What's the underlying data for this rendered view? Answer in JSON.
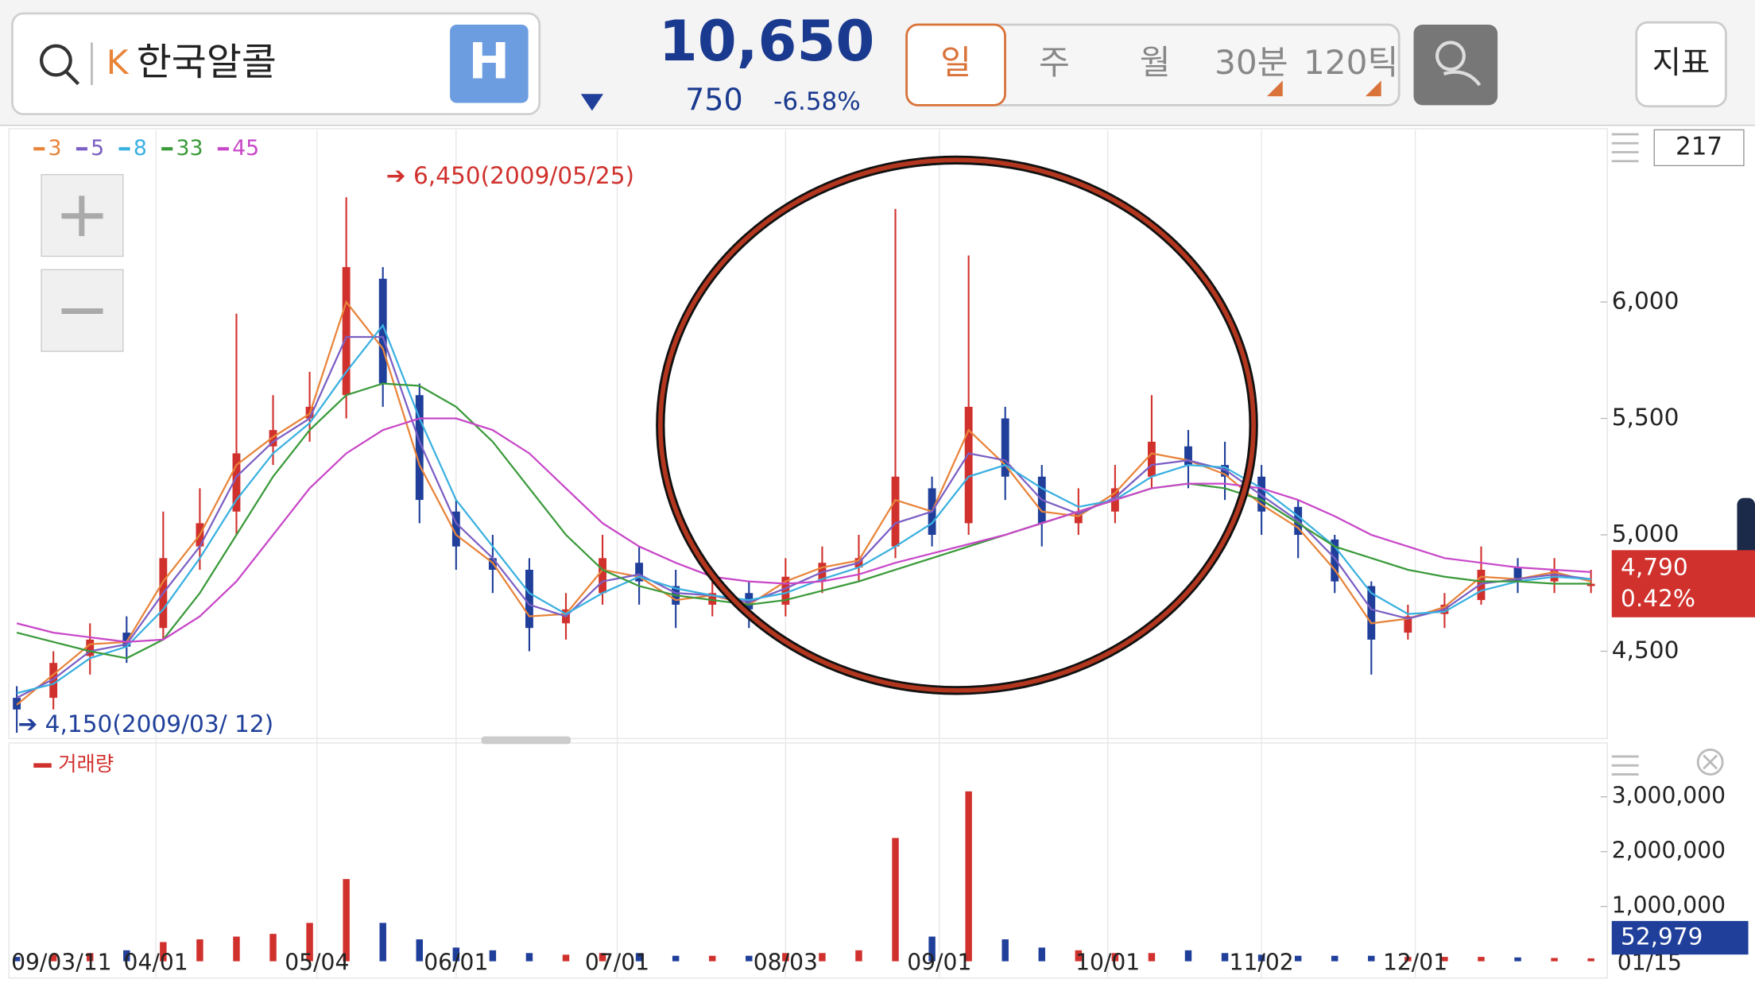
{
  "header": {
    "search_prefix": "K",
    "stock_name": "한국알콜",
    "market_badge": "H",
    "price": "10,650",
    "change": "750",
    "change_pct": "-6.58%"
  },
  "tabs": [
    "일",
    "주",
    "월",
    "30분",
    "120틱"
  ],
  "indicator_button": "지표",
  "count_label": "217",
  "chart_data": [
    {
      "type": "candlestick",
      "x": [
        0,
        5,
        10,
        15,
        20,
        25,
        30,
        35,
        40,
        45,
        50,
        55,
        60,
        65,
        70,
        75,
        80,
        85,
        90,
        95,
        100,
        105,
        110,
        115,
        120,
        125,
        130,
        135,
        140,
        145,
        150,
        155,
        160,
        165,
        170,
        175,
        180,
        185,
        190,
        195,
        200,
        205,
        210,
        215
      ],
      "open": [
        4300,
        4300,
        4480,
        4580,
        4600,
        4950,
        5100,
        5380,
        5500,
        5600,
        6100,
        5600,
        5100,
        4900,
        4850,
        4620,
        4750,
        4880,
        4780,
        4700,
        4750,
        4700,
        4800,
        4860,
        4950,
        5200,
        5050,
        5500,
        5250,
        5050,
        5100,
        5250,
        5380,
        5300,
        5250,
        5120,
        4980,
        4780,
        4580,
        4660,
        4720,
        4860,
        4800,
        4780
      ],
      "high": [
        4350,
        4500,
        4620,
        4650,
        5100,
        5200,
        5950,
        5600,
        5700,
        6450,
        6150,
        5650,
        5150,
        5000,
        4900,
        4750,
        5000,
        4950,
        4850,
        4800,
        4800,
        4900,
        4950,
        5000,
        6400,
        5250,
        6200,
        5550,
        5300,
        5200,
        5300,
        5600,
        5450,
        5400,
        5300,
        5150,
        5000,
        4800,
        4700,
        4750,
        4950,
        4900,
        4900,
        4850
      ],
      "low": [
        4150,
        4250,
        4400,
        4450,
        4550,
        4850,
        5000,
        5300,
        5400,
        5500,
        5550,
        5050,
        4850,
        4750,
        4500,
        4550,
        4700,
        4700,
        4600,
        4650,
        4600,
        4650,
        4750,
        4800,
        4900,
        4950,
        5000,
        5150,
        4950,
        5000,
        5050,
        5200,
        5200,
        5150,
        5000,
        4900,
        4750,
        4400,
        4550,
        4600,
        4700,
        4750,
        4750,
        4750
      ],
      "close": [
        4250,
        4450,
        4550,
        4520,
        4900,
        5050,
        5350,
        5450,
        5550,
        6150,
        5650,
        5150,
        4950,
        4850,
        4600,
        4680,
        4900,
        4800,
        4700,
        4750,
        4680,
        4820,
        4880,
        4900,
        5250,
        5000,
        5550,
        5250,
        5050,
        5100,
        5200,
        5400,
        5300,
        5250,
        5100,
        5000,
        4800,
        4550,
        4650,
        4700,
        4850,
        4800,
        4850,
        4790
      ],
      "up_color": "#d0312d",
      "down_color": "#1f3f9a",
      "series": [
        {
          "name": "3",
          "color": "#e8843a",
          "values": [
            4270,
            4400,
            4530,
            4540,
            4800,
            5000,
            5300,
            5420,
            5520,
            6000,
            5800,
            5300,
            5000,
            4880,
            4650,
            4660,
            4850,
            4820,
            4720,
            4740,
            4700,
            4800,
            4860,
            4890,
            5150,
            5100,
            5450,
            5300,
            5100,
            5080,
            5180,
            5350,
            5320,
            5260,
            5130,
            5030,
            4850,
            4620,
            4640,
            4690,
            4820,
            4810,
            4840,
            4800
          ]
        },
        {
          "name": "5",
          "color": "#7b5fc4",
          "values": [
            4300,
            4380,
            4500,
            4530,
            4750,
            4950,
            5250,
            5400,
            5500,
            5850,
            5850,
            5400,
            5050,
            4900,
            4700,
            4650,
            4800,
            4830,
            4750,
            4740,
            4710,
            4770,
            4840,
            4880,
            5050,
            5100,
            5350,
            5320,
            5150,
            5090,
            5160,
            5300,
            5320,
            5280,
            5170,
            5060,
            4900,
            4680,
            4640,
            4680,
            4790,
            4810,
            4830,
            4810
          ]
        },
        {
          "name": "8",
          "color": "#3ab0e0",
          "values": [
            4320,
            4360,
            4470,
            4520,
            4680,
            4900,
            5150,
            5350,
            5480,
            5700,
            5900,
            5500,
            5150,
            4950,
            4750,
            4660,
            4750,
            4820,
            4770,
            4740,
            4720,
            4750,
            4810,
            4860,
            4950,
            5050,
            5250,
            5300,
            5200,
            5120,
            5150,
            5250,
            5300,
            5290,
            5200,
            5080,
            4950,
            4750,
            4660,
            4670,
            4760,
            4800,
            4820,
            4810
          ]
        },
        {
          "name": "33",
          "color": "#3a9a3a",
          "values": [
            4580,
            4540,
            4500,
            4470,
            4550,
            4750,
            5000,
            5250,
            5450,
            5600,
            5650,
            5640,
            5550,
            5400,
            5200,
            5000,
            4850,
            4780,
            4740,
            4720,
            4700,
            4720,
            4760,
            4800,
            4850,
            4900,
            4950,
            5000,
            5050,
            5100,
            5150,
            5200,
            5220,
            5200,
            5150,
            5050,
            4950,
            4900,
            4850,
            4820,
            4800,
            4800,
            4790,
            4790
          ]
        },
        {
          "name": "45",
          "color": "#c847c8",
          "values": [
            4620,
            4580,
            4560,
            4540,
            4550,
            4650,
            4800,
            5000,
            5200,
            5350,
            5450,
            5500,
            5500,
            5450,
            5350,
            5200,
            5050,
            4950,
            4880,
            4820,
            4800,
            4790,
            4800,
            4830,
            4880,
            4920,
            4960,
            5000,
            5050,
            5100,
            5150,
            5200,
            5220,
            5220,
            5200,
            5150,
            5080,
            5000,
            4950,
            4900,
            4880,
            4860,
            4850,
            4840
          ]
        }
      ],
      "xlim": [
        0,
        216
      ],
      "ylim": [
        4125,
        6730
      ],
      "yticks": [
        {
          "value": 4500,
          "label": "4,500"
        },
        {
          "value": 5000,
          "label": "5,000"
        },
        {
          "value": 5500,
          "label": "5,500"
        },
        {
          "value": 6000,
          "label": "6,000"
        }
      ],
      "annotations": [
        "➔ 6,450(2009/05/25)",
        "➔ 4,150(2009/03/ 12)"
      ],
      "last_price": "4,790",
      "last_change": "0.42%"
    },
    {
      "type": "bar",
      "title": "거래량",
      "color": "#d0312d",
      "x": [
        0,
        5,
        10,
        15,
        20,
        25,
        30,
        35,
        40,
        45,
        50,
        55,
        60,
        65,
        70,
        75,
        80,
        85,
        90,
        95,
        100,
        105,
        110,
        115,
        120,
        125,
        130,
        135,
        140,
        145,
        150,
        155,
        160,
        165,
        170,
        175,
        180,
        185,
        190,
        195,
        200,
        205,
        210,
        215
      ],
      "values": [
        80000,
        120000,
        150000,
        200000,
        350000,
        400000,
        450000,
        500000,
        700000,
        1500000,
        700000,
        400000,
        250000,
        200000,
        150000,
        120000,
        150000,
        150000,
        100000,
        100000,
        100000,
        150000,
        150000,
        200000,
        2250000,
        450000,
        3100000,
        400000,
        250000,
        200000,
        150000,
        150000,
        200000,
        150000,
        120000,
        100000,
        100000,
        100000,
        80000,
        80000,
        80000,
        70000,
        60000,
        52979
      ],
      "value_labels": [
        null,
        null,
        null,
        null,
        null,
        null,
        null,
        null,
        null,
        null,
        null,
        null,
        null,
        null,
        null,
        null,
        null,
        null,
        null,
        null,
        null,
        null,
        null,
        null,
        null,
        null,
        null,
        null,
        null,
        null,
        null,
        null,
        null,
        null,
        null,
        null,
        null,
        null,
        null,
        null,
        null,
        null,
        null,
        "52,979"
      ],
      "xlim": [
        0,
        216
      ],
      "ylim": [
        0,
        3900000
      ],
      "yticks": [
        {
          "value": 1000000,
          "label": "1,000,000"
        },
        {
          "value": 2000000,
          "label": "2,000,000"
        },
        {
          "value": 3000000,
          "label": "3,000,000"
        }
      ],
      "xticks": [
        {
          "value": 0,
          "label": "09/03/11"
        },
        {
          "value": 19,
          "label": "04/01"
        },
        {
          "value": 41,
          "label": "05/04"
        },
        {
          "value": 60,
          "label": "06/01"
        },
        {
          "value": 82,
          "label": "07/01"
        },
        {
          "value": 105,
          "label": "08/03"
        },
        {
          "value": 126,
          "label": "09/01"
        },
        {
          "value": 149,
          "label": "10/01"
        },
        {
          "value": 170,
          "label": "11/02"
        },
        {
          "value": 191,
          "label": "12/01"
        },
        {
          "value": 216,
          "label": "01/15"
        }
      ]
    }
  ]
}
